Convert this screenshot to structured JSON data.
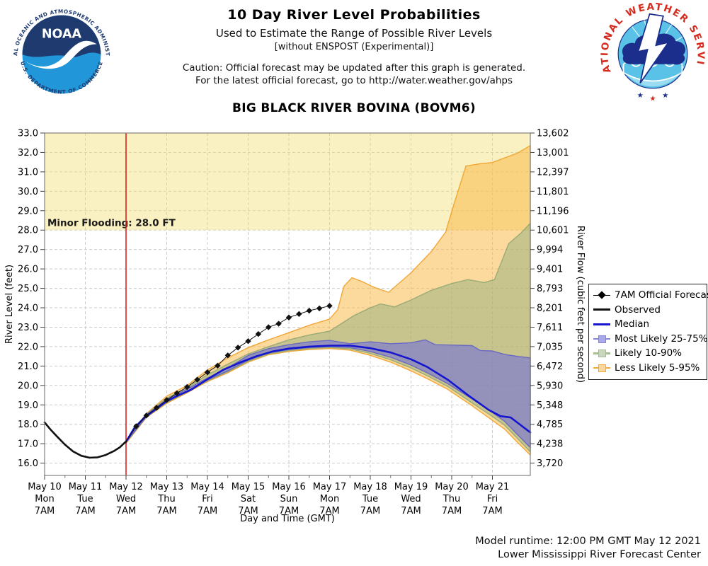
{
  "header": {
    "title": "10 Day River Level Probabilities",
    "subtitle1": "Used to Estimate the Range of Possible River Levels",
    "subtitle2": "[without ENSPOST (Experimental)]",
    "caution1": "Caution: Official forecast may be updated after this graph is generated.",
    "caution2": "For the latest official forecast, go to http://water.weather.gov/ahps",
    "station_title": "BIG BLACK RIVER BOVINA (BOVM6)",
    "noaa_logo": {
      "ring_top": "NATIONAL OCEANIC AND ATMOSPHERIC ADMINISTRATION",
      "ring_bottom": "U.S. DEPARTMENT OF COMMERCE",
      "acronym": "NOAA"
    },
    "nws_logo": {
      "ring_text": "NATIONAL WEATHER SERVICE"
    }
  },
  "footer": {
    "model_runtime": "Model runtime: 12:00 PM GMT May 12 2021",
    "center": "Lower Mississippi River Forecast Center"
  },
  "colors": {
    "flood_fill": "rgba(242,222,110,0.42)",
    "band_5_95_fill": "rgba(250,185,75,0.55)",
    "band_5_95_stroke": "rgba(240,160,40,0.9)",
    "band_10_90_fill": "rgba(145,175,125,0.5)",
    "band_10_90_stroke": "rgba(130,160,110,0.75)",
    "band_25_75_fill": "rgba(105,105,225,0.55)",
    "band_25_75_stroke": "rgba(90,90,200,0.8)",
    "median": "#1515CE",
    "observed": "#111111",
    "forecast": "#111111",
    "runtime_line": "#DD2222",
    "grid": "#CBCBCB",
    "border": "#808080",
    "text": "#000000"
  },
  "chart_data": {
    "type": "line",
    "title": "BIG BLACK RIVER BOVINA (BOVM6)",
    "xlabel": "Day and Time (GMT)",
    "ylabel_left": "River Level (feet)",
    "ylabel_right": "River Flow (cubic feet per second)",
    "ylim": [
      15.37,
      33.0
    ],
    "xlim_days": [
      0,
      11.93
    ],
    "grid": true,
    "legend_position": "right",
    "y_axis_left_ticks": [
      "33.0",
      "32.0",
      "31.0",
      "30.0",
      "29.0",
      "28.0",
      "27.0",
      "26.0",
      "25.0",
      "24.0",
      "23.0",
      "22.0",
      "21.0",
      "20.0",
      "19.0",
      "18.0",
      "17.0",
      "16.0"
    ],
    "y_axis_right_ticks": [
      "13,602",
      "13,001",
      "12,397",
      "11,801",
      "11,196",
      "10,601",
      "9,994",
      "9,401",
      "8,793",
      "8,201",
      "7,611",
      "7,035",
      "6,472",
      "5,930",
      "5,348",
      "4,785",
      "4,238",
      "3,720"
    ],
    "x_ticks": [
      {
        "date": "May 10",
        "dow": "Mon",
        "time": "7AM"
      },
      {
        "date": "May 11",
        "dow": "Tue",
        "time": "7AM"
      },
      {
        "date": "May 12",
        "dow": "Wed",
        "time": "7AM"
      },
      {
        "date": "May 13",
        "dow": "Thu",
        "time": "7AM"
      },
      {
        "date": "May 14",
        "dow": "Fri",
        "time": "7AM"
      },
      {
        "date": "May 15",
        "dow": "Sat",
        "time": "7AM"
      },
      {
        "date": "May 16",
        "dow": "Sun",
        "time": "7AM"
      },
      {
        "date": "May 17",
        "dow": "Mon",
        "time": "7AM"
      },
      {
        "date": "May 18",
        "dow": "Tue",
        "time": "7AM"
      },
      {
        "date": "May 19",
        "dow": "Wed",
        "time": "7AM"
      },
      {
        "date": "May 20",
        "dow": "Thu",
        "time": "7AM"
      },
      {
        "date": "May 21",
        "dow": "Fri",
        "time": "7AM"
      }
    ],
    "flood": {
      "label": "Minor Flooding: 28.0 FT",
      "level": 28.0
    },
    "model_runtime_day": 2.0,
    "series": {
      "observed": {
        "name": "Observed",
        "points": [
          [
            0,
            18.1
          ],
          [
            0.15,
            17.72
          ],
          [
            0.3,
            17.38
          ],
          [
            0.5,
            16.95
          ],
          [
            0.7,
            16.6
          ],
          [
            0.9,
            16.38
          ],
          [
            1.1,
            16.28
          ],
          [
            1.3,
            16.3
          ],
          [
            1.5,
            16.42
          ],
          [
            1.7,
            16.62
          ],
          [
            1.85,
            16.82
          ],
          [
            2.0,
            17.12
          ]
        ]
      },
      "official_forecast": {
        "name": "7AM Official Forecast",
        "points": [
          [
            2.25,
            17.9
          ],
          [
            2.5,
            18.45
          ],
          [
            2.75,
            18.85
          ],
          [
            3.0,
            19.25
          ],
          [
            3.25,
            19.6
          ],
          [
            3.5,
            19.92
          ],
          [
            3.75,
            20.3
          ],
          [
            4.0,
            20.68
          ],
          [
            4.25,
            21.02
          ],
          [
            4.5,
            21.55
          ],
          [
            4.75,
            21.95
          ],
          [
            5.0,
            22.28
          ],
          [
            5.25,
            22.65
          ],
          [
            5.5,
            23.0
          ],
          [
            5.75,
            23.18
          ],
          [
            6.0,
            23.5
          ],
          [
            6.25,
            23.68
          ],
          [
            6.5,
            23.85
          ],
          [
            6.75,
            23.97
          ],
          [
            7.0,
            24.1
          ]
        ]
      },
      "median": {
        "name": "Median",
        "points": [
          [
            2.0,
            17.1
          ],
          [
            2.2,
            17.8
          ],
          [
            2.45,
            18.35
          ],
          [
            2.7,
            18.72
          ],
          [
            3.0,
            19.2
          ],
          [
            3.3,
            19.5
          ],
          [
            3.6,
            19.78
          ],
          [
            4.0,
            20.32
          ],
          [
            4.4,
            20.82
          ],
          [
            4.8,
            21.18
          ],
          [
            5.2,
            21.5
          ],
          [
            5.6,
            21.75
          ],
          [
            6.0,
            21.9
          ],
          [
            6.5,
            22.0
          ],
          [
            7.0,
            22.05
          ],
          [
            7.5,
            22.05
          ],
          [
            8.0,
            21.92
          ],
          [
            8.5,
            21.7
          ],
          [
            9.0,
            21.35
          ],
          [
            9.4,
            20.95
          ],
          [
            9.9,
            20.3
          ],
          [
            10.4,
            19.5
          ],
          [
            10.9,
            18.75
          ],
          [
            11.2,
            18.42
          ],
          [
            11.45,
            18.35
          ],
          [
            11.7,
            17.95
          ],
          [
            11.93,
            17.58
          ]
        ]
      },
      "band_25_75": {
        "name": "Most Likely 25-75%",
        "upper": [
          [
            2.0,
            17.12
          ],
          [
            2.5,
            18.5
          ],
          [
            3.0,
            19.28
          ],
          [
            3.5,
            19.82
          ],
          [
            4.0,
            20.38
          ],
          [
            4.5,
            20.9
          ],
          [
            5.0,
            21.55
          ],
          [
            5.5,
            21.9
          ],
          [
            6.0,
            22.1
          ],
          [
            6.5,
            22.25
          ],
          [
            7.0,
            22.32
          ],
          [
            7.5,
            22.15
          ],
          [
            8.0,
            22.25
          ],
          [
            8.5,
            22.15
          ],
          [
            9.0,
            22.2
          ],
          [
            9.35,
            22.35
          ],
          [
            9.6,
            22.1
          ],
          [
            10.0,
            22.08
          ],
          [
            10.5,
            22.05
          ],
          [
            10.7,
            21.8
          ],
          [
            11.0,
            21.78
          ],
          [
            11.3,
            21.6
          ],
          [
            11.6,
            21.5
          ],
          [
            11.93,
            21.42
          ]
        ],
        "lower": [
          [
            2.0,
            17.08
          ],
          [
            2.5,
            18.4
          ],
          [
            3.0,
            19.15
          ],
          [
            3.5,
            19.7
          ],
          [
            4.0,
            20.28
          ],
          [
            4.5,
            20.75
          ],
          [
            5.0,
            21.3
          ],
          [
            5.5,
            21.68
          ],
          [
            6.0,
            21.85
          ],
          [
            6.5,
            21.95
          ],
          [
            7.0,
            22.0
          ],
          [
            7.5,
            21.95
          ],
          [
            8.0,
            21.75
          ],
          [
            8.5,
            21.45
          ],
          [
            9.0,
            21.05
          ],
          [
            9.4,
            20.65
          ],
          [
            9.9,
            20.1
          ],
          [
            10.5,
            19.3
          ],
          [
            11.0,
            18.6
          ],
          [
            11.3,
            18.15
          ],
          [
            11.6,
            17.5
          ],
          [
            11.93,
            16.8
          ]
        ]
      },
      "band_10_90": {
        "name": "Likely 10-90%",
        "upper": [
          [
            2.0,
            17.12
          ],
          [
            2.5,
            18.52
          ],
          [
            3.0,
            19.35
          ],
          [
            3.5,
            19.9
          ],
          [
            4.0,
            20.55
          ],
          [
            4.5,
            21.1
          ],
          [
            5.0,
            21.62
          ],
          [
            5.5,
            22.0
          ],
          [
            6.0,
            22.35
          ],
          [
            6.5,
            22.6
          ],
          [
            7.0,
            22.8
          ],
          [
            7.3,
            23.2
          ],
          [
            7.6,
            23.6
          ],
          [
            8.0,
            24.0
          ],
          [
            8.25,
            24.2
          ],
          [
            8.6,
            24.05
          ],
          [
            9.0,
            24.4
          ],
          [
            9.5,
            24.9
          ],
          [
            10.0,
            25.25
          ],
          [
            10.4,
            25.45
          ],
          [
            10.8,
            25.3
          ],
          [
            11.05,
            25.45
          ],
          [
            11.4,
            27.3
          ],
          [
            11.7,
            27.85
          ],
          [
            11.93,
            28.35
          ]
        ],
        "lower": [
          [
            2.0,
            17.06
          ],
          [
            2.5,
            18.38
          ],
          [
            3.0,
            19.12
          ],
          [
            3.5,
            19.67
          ],
          [
            4.0,
            20.24
          ],
          [
            4.5,
            20.7
          ],
          [
            5.0,
            21.25
          ],
          [
            5.5,
            21.62
          ],
          [
            6.0,
            21.8
          ],
          [
            6.5,
            21.9
          ],
          [
            7.0,
            21.95
          ],
          [
            7.5,
            21.88
          ],
          [
            8.0,
            21.65
          ],
          [
            8.5,
            21.32
          ],
          [
            9.0,
            20.9
          ],
          [
            9.4,
            20.5
          ],
          [
            9.9,
            19.95
          ],
          [
            10.5,
            19.1
          ],
          [
            11.0,
            18.4
          ],
          [
            11.3,
            17.95
          ],
          [
            11.6,
            17.3
          ],
          [
            11.93,
            16.58
          ]
        ]
      },
      "band_5_95": {
        "name": "Less Likely 5-95%",
        "upper": [
          [
            2.0,
            17.15
          ],
          [
            2.5,
            18.55
          ],
          [
            3.0,
            19.45
          ],
          [
            3.5,
            20.0
          ],
          [
            4.0,
            20.8
          ],
          [
            4.5,
            21.42
          ],
          [
            5.0,
            21.95
          ],
          [
            5.5,
            22.35
          ],
          [
            6.0,
            22.72
          ],
          [
            6.5,
            23.1
          ],
          [
            7.0,
            23.42
          ],
          [
            7.2,
            23.9
          ],
          [
            7.35,
            25.1
          ],
          [
            7.55,
            25.55
          ],
          [
            7.8,
            25.35
          ],
          [
            8.1,
            25.05
          ],
          [
            8.45,
            24.8
          ],
          [
            9.0,
            25.8
          ],
          [
            9.5,
            26.9
          ],
          [
            9.85,
            27.9
          ],
          [
            10.05,
            29.3
          ],
          [
            10.35,
            31.3
          ],
          [
            10.7,
            31.42
          ],
          [
            11.0,
            31.48
          ],
          [
            11.3,
            31.72
          ],
          [
            11.6,
            31.95
          ],
          [
            11.93,
            32.35
          ]
        ],
        "lower": [
          [
            2.0,
            17.02
          ],
          [
            2.5,
            18.35
          ],
          [
            3.0,
            19.08
          ],
          [
            3.5,
            19.62
          ],
          [
            4.0,
            20.2
          ],
          [
            4.5,
            20.65
          ],
          [
            5.0,
            21.2
          ],
          [
            5.5,
            21.58
          ],
          [
            6.0,
            21.75
          ],
          [
            6.5,
            21.85
          ],
          [
            7.0,
            21.9
          ],
          [
            7.5,
            21.82
          ],
          [
            8.0,
            21.55
          ],
          [
            8.5,
            21.2
          ],
          [
            9.0,
            20.75
          ],
          [
            9.4,
            20.35
          ],
          [
            9.9,
            19.8
          ],
          [
            10.5,
            18.95
          ],
          [
            11.0,
            18.2
          ],
          [
            11.3,
            17.75
          ],
          [
            11.6,
            17.1
          ],
          [
            11.93,
            16.42
          ]
        ]
      }
    },
    "legend": [
      {
        "label": "7AM Official Forecast",
        "swatch": "diamond-line",
        "fill": "#000000",
        "stroke": "#000000"
      },
      {
        "label": "Observed",
        "swatch": "line",
        "fill": "#111111",
        "stroke": "#111111"
      },
      {
        "label": "Median",
        "swatch": "line",
        "fill": "#1515CE",
        "stroke": "#1515CE"
      },
      {
        "label": "Most Likely 25-75%",
        "swatch": "band",
        "fill": "#A9A9EC",
        "stroke": "#8484D8"
      },
      {
        "label": "Likely 10-90%",
        "swatch": "band",
        "fill": "#C8D7BE",
        "stroke": "#A3BD8F"
      },
      {
        "label": "Less Likely 5-95%",
        "swatch": "band",
        "fill": "#FCD89C",
        "stroke": "#F2A93C"
      }
    ]
  }
}
